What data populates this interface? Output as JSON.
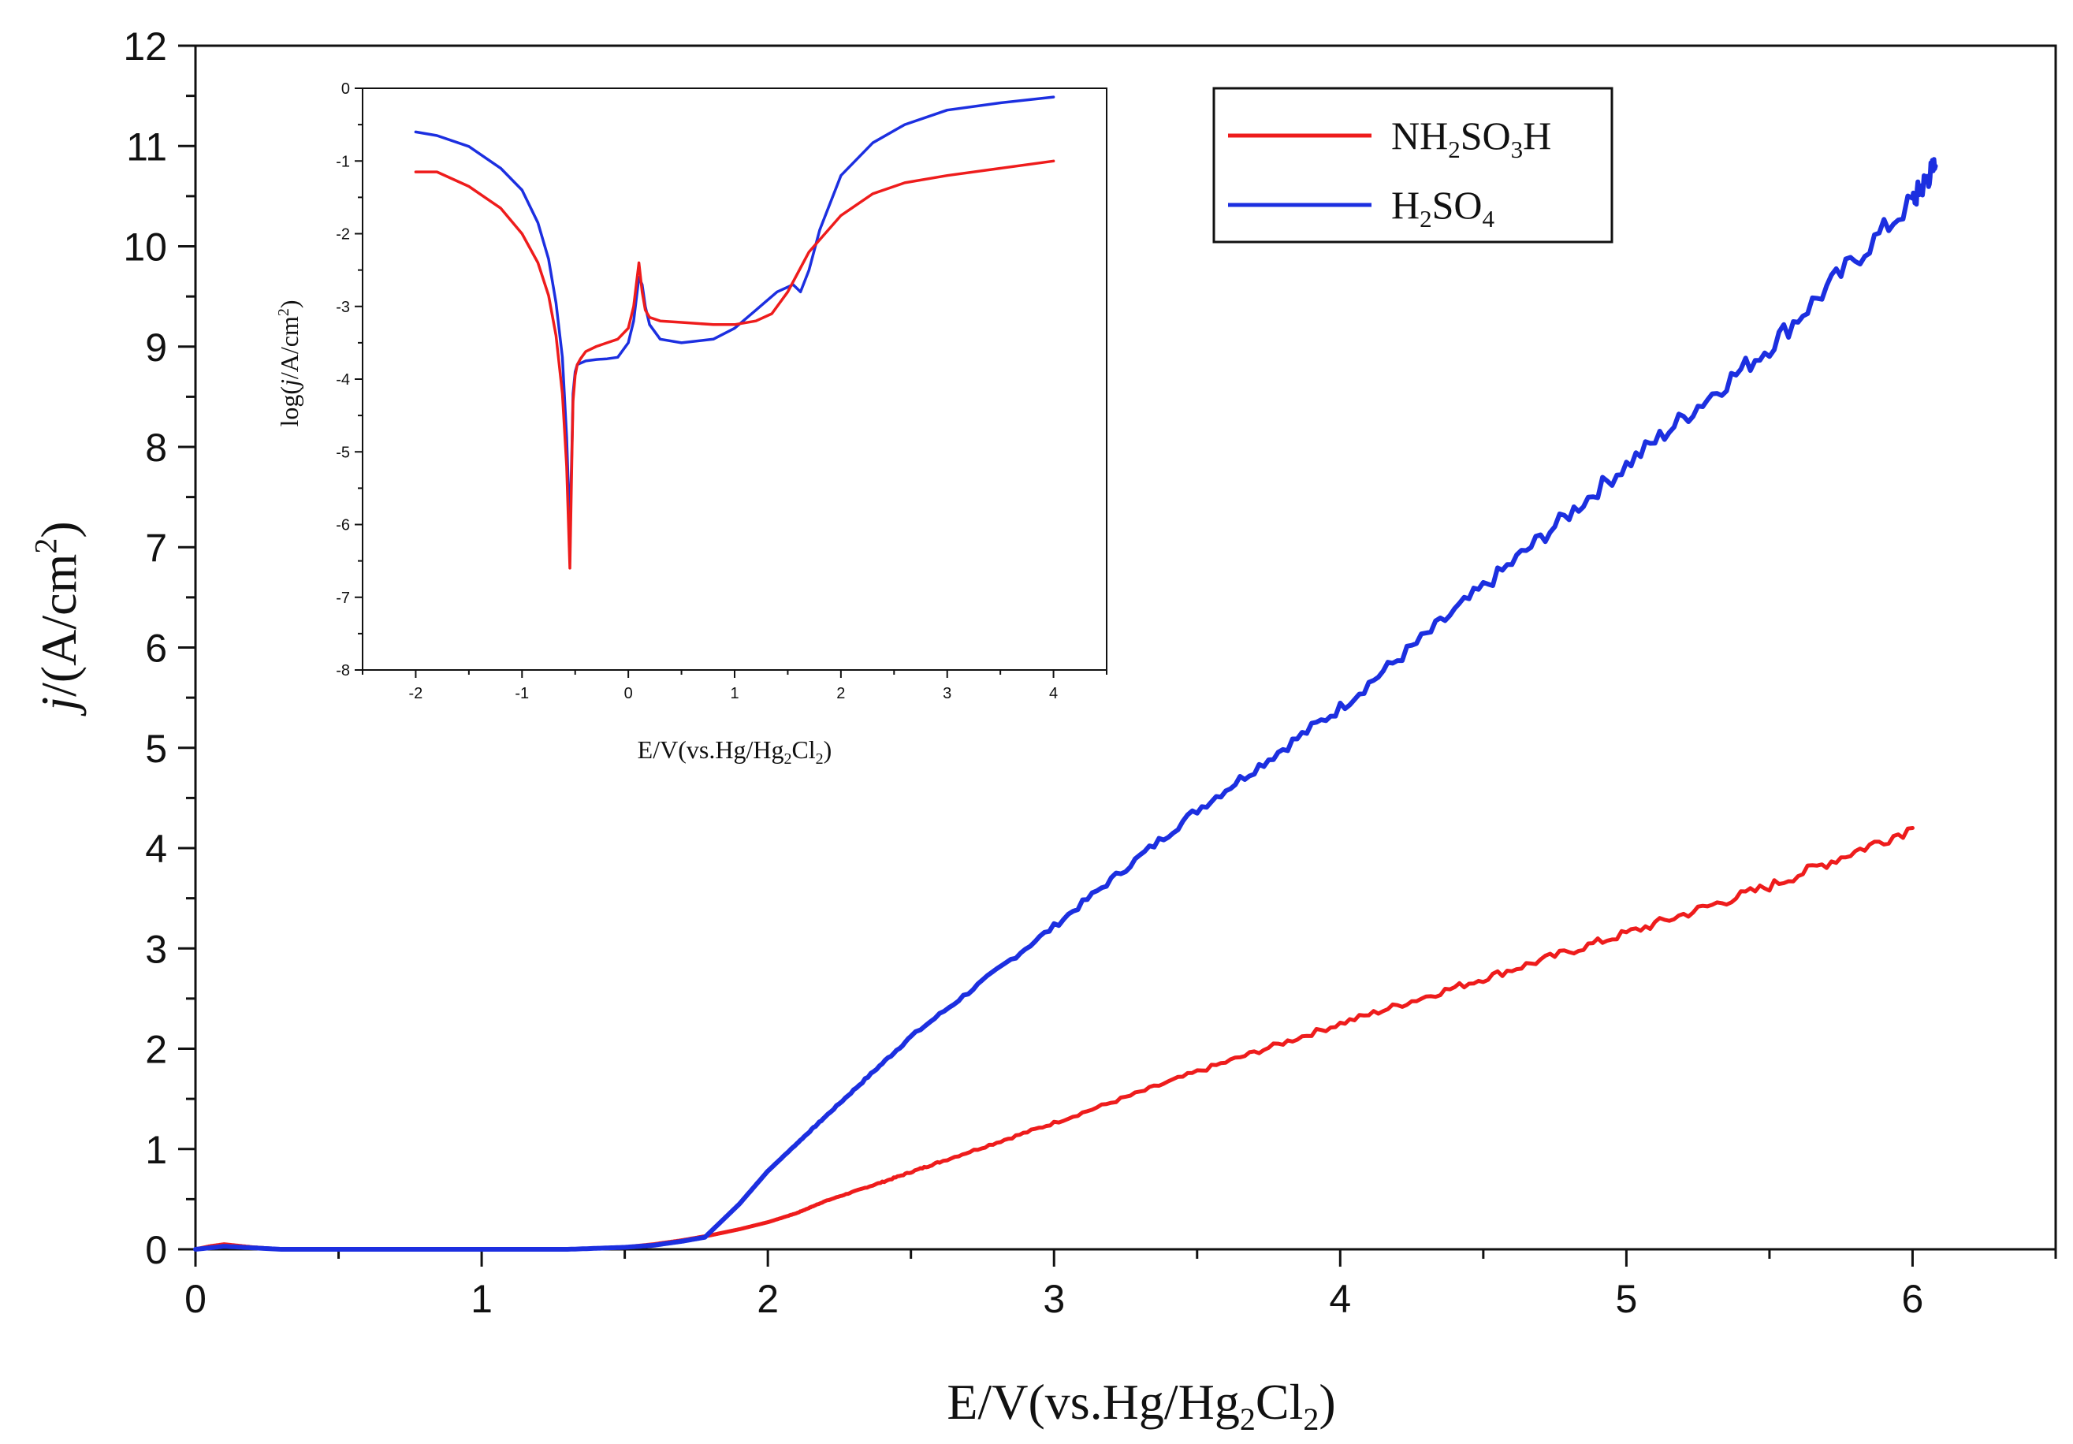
{
  "chart_data": [
    {
      "name": "main",
      "type": "line",
      "title": "",
      "xlabel": "E/V(vs.Hg/Hg2Cl2)",
      "ylabel": "j/(A/cm2)",
      "xlim": [
        0,
        6.5
      ],
      "ylim": [
        0,
        12
      ],
      "xticks": [
        0,
        1,
        2,
        3,
        4,
        5,
        6
      ],
      "yticks": [
        0,
        1,
        2,
        3,
        4,
        5,
        6,
        7,
        8,
        9,
        10,
        11,
        12
      ],
      "legend_position": "top-right",
      "series": [
        {
          "name": "NH2SO3H",
          "color": "#ee1c1c",
          "x": [
            0.0,
            0.05,
            0.1,
            0.2,
            0.3,
            0.5,
            1.0,
            1.3,
            1.5,
            1.6,
            1.7,
            1.8,
            1.9,
            2.0,
            2.1,
            2.2,
            2.4,
            2.6,
            3.0,
            3.5,
            4.0,
            4.5,
            5.0,
            5.5,
            6.0
          ],
          "y": [
            0.0,
            0.03,
            0.05,
            0.02,
            0.0,
            0.0,
            0.0,
            0.0,
            0.02,
            0.05,
            0.09,
            0.14,
            0.2,
            0.27,
            0.36,
            0.48,
            0.67,
            0.87,
            1.26,
            1.77,
            2.25,
            2.7,
            3.15,
            3.62,
            4.2
          ]
        },
        {
          "name": "H2SO4",
          "color": "#1c2fe0",
          "x": [
            0.0,
            0.1,
            0.3,
            0.5,
            1.0,
            1.3,
            1.5,
            1.6,
            1.7,
            1.78,
            1.9,
            2.0,
            2.2,
            2.5,
            3.0,
            3.5,
            4.0,
            4.5,
            5.0,
            5.5,
            6.0,
            6.08
          ],
          "y": [
            0.0,
            0.03,
            0.0,
            0.0,
            0.0,
            0.0,
            0.02,
            0.04,
            0.08,
            0.12,
            0.45,
            0.78,
            1.32,
            2.12,
            3.22,
            4.38,
            5.4,
            6.6,
            7.82,
            9.0,
            10.45,
            10.8
          ]
        }
      ]
    },
    {
      "name": "inset",
      "type": "line",
      "title": "",
      "xlabel": "E/V(vs.Hg/Hg2Cl2)",
      "ylabel": "log(j/A/cm2)",
      "xlim": [
        -2.5,
        4.5
      ],
      "ylim": [
        -8,
        0
      ],
      "xticks": [
        -2,
        -1,
        0,
        1,
        2,
        3,
        4
      ],
      "yticks": [
        0,
        -1,
        -2,
        -3,
        -4,
        -5,
        -6,
        -7,
        -8
      ],
      "legend_position": "none",
      "series": [
        {
          "name": "NH2SO3H",
          "color": "#ee1c1c",
          "x": [
            -2.0,
            -1.8,
            -1.5,
            -1.2,
            -1.0,
            -0.85,
            -0.75,
            -0.68,
            -0.62,
            -0.58,
            -0.55,
            -0.53,
            -0.52,
            -0.5,
            -0.48,
            -0.45,
            -0.4,
            -0.3,
            -0.2,
            -0.1,
            0.0,
            0.05,
            0.1,
            0.13,
            0.16,
            0.2,
            0.3,
            0.5,
            0.8,
            1.0,
            1.2,
            1.35,
            1.5,
            1.7,
            2.0,
            2.3,
            2.6,
            3.0,
            3.5,
            4.0
          ],
          "y": [
            -1.15,
            -1.15,
            -1.35,
            -1.65,
            -2.0,
            -2.4,
            -2.85,
            -3.4,
            -4.2,
            -5.2,
            -6.6,
            -5.0,
            -4.3,
            -3.95,
            -3.8,
            -3.72,
            -3.62,
            -3.55,
            -3.5,
            -3.45,
            -3.3,
            -3.0,
            -2.4,
            -2.8,
            -3.05,
            -3.15,
            -3.2,
            -3.22,
            -3.25,
            -3.25,
            -3.2,
            -3.1,
            -2.8,
            -2.25,
            -1.75,
            -1.45,
            -1.3,
            -1.2,
            -1.1,
            -1.0
          ]
        },
        {
          "name": "H2SO4",
          "color": "#1c2fe0",
          "x": [
            -2.0,
            -1.8,
            -1.5,
            -1.2,
            -1.0,
            -0.85,
            -0.75,
            -0.68,
            -0.62,
            -0.58,
            -0.55,
            -0.53,
            -0.52,
            -0.5,
            -0.48,
            -0.45,
            -0.4,
            -0.3,
            -0.2,
            -0.1,
            0.0,
            0.05,
            0.1,
            0.13,
            0.16,
            0.2,
            0.3,
            0.5,
            0.8,
            1.0,
            1.2,
            1.4,
            1.55,
            1.62,
            1.7,
            1.8,
            2.0,
            2.3,
            2.6,
            3.0,
            3.5,
            4.0
          ],
          "y": [
            -0.6,
            -0.65,
            -0.8,
            -1.1,
            -1.4,
            -1.85,
            -2.35,
            -2.95,
            -3.7,
            -4.8,
            -6.1,
            -4.9,
            -4.2,
            -3.9,
            -3.8,
            -3.78,
            -3.75,
            -3.73,
            -3.72,
            -3.7,
            -3.5,
            -3.2,
            -2.6,
            -2.7,
            -3.0,
            -3.25,
            -3.45,
            -3.5,
            -3.45,
            -3.3,
            -3.05,
            -2.8,
            -2.7,
            -2.8,
            -2.5,
            -1.95,
            -1.2,
            -0.75,
            -0.5,
            -0.3,
            -0.2,
            -0.12
          ]
        }
      ]
    }
  ]
}
